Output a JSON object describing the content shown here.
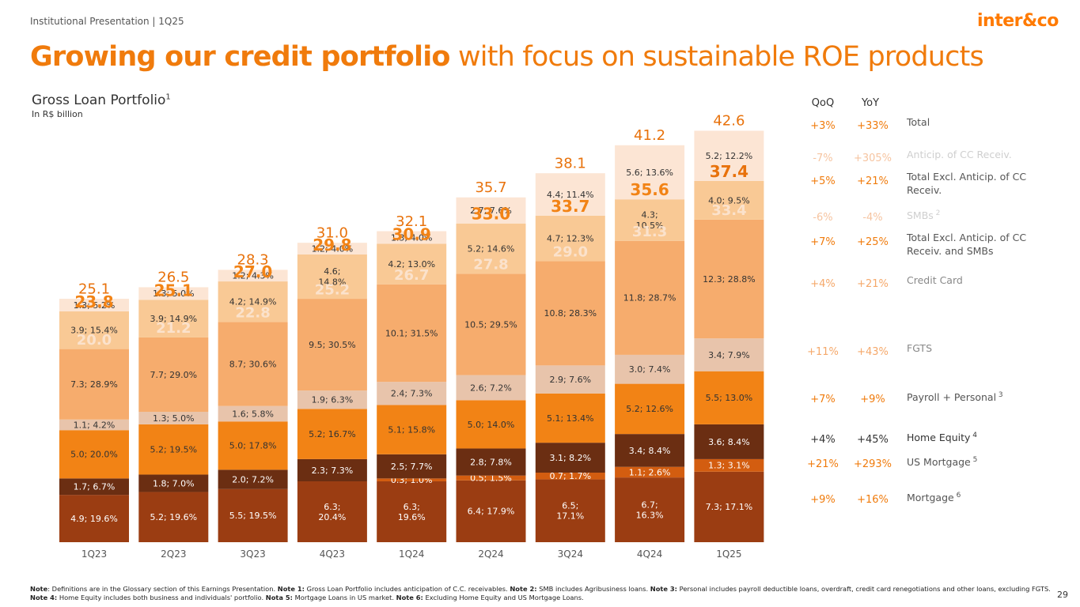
{
  "header": {
    "label": "Institutional Presentation | 1Q25",
    "logo": "inter&co",
    "page": "29"
  },
  "title": {
    "bold": "Growing our credit portfolio",
    "normal": " with focus on sustainable ROE products"
  },
  "chart_data": {
    "type": "bar",
    "stacked": true,
    "title": "Gross Loan Portfolio",
    "title_superscript": "1",
    "unit": "In R$ billion",
    "categories": [
      "1Q23",
      "2Q23",
      "3Q23",
      "4Q23",
      "1Q24",
      "2Q24",
      "3Q24",
      "4Q24",
      "1Q25"
    ],
    "totals": [
      "25.1",
      "26.5",
      "28.3",
      "31.0",
      "32.1",
      "35.7",
      "38.1",
      "41.2",
      "42.6"
    ],
    "series": [
      {
        "name": "Mortgage",
        "color": "#9b3d12",
        "values": [
          4.9,
          5.2,
          5.5,
          6.3,
          6.3,
          6.4,
          6.5,
          6.7,
          7.3
        ],
        "labels": [
          "4.9; 19.6%",
          "5.2; 19.6%",
          "5.5; 19.5%",
          "6.3;\n20.4%",
          "6.3;\n19.6%",
          "6.4; 17.9%",
          "6.5;\n17.1%",
          "6.7;\n16.3%",
          "7.3; 17.1%"
        ]
      },
      {
        "name": "US Mortgage",
        "color": "#d35d10",
        "values": [
          0,
          0,
          0,
          0,
          0.3,
          0.5,
          0.7,
          1.1,
          1.3
        ],
        "labels": [
          "",
          "",
          "",
          "",
          "0.3; 1.0%",
          "0.5; 1.5%",
          "0.7; 1.7%",
          "1.1; 2.6%",
          "1.3; 3.1%"
        ]
      },
      {
        "name": "Home Equity",
        "color": "#6b2e12",
        "values": [
          1.7,
          1.8,
          2.0,
          2.3,
          2.5,
          2.8,
          3.1,
          3.4,
          3.6
        ],
        "labels": [
          "1.7; 6.7%",
          "1.8; 7.0%",
          "2.0; 7.2%",
          "2.3; 7.3%",
          "2.5; 7.7%",
          "2.8; 7.8%",
          "3.1; 8.2%",
          "3.4; 8.4%",
          "3.6; 8.4%"
        ]
      },
      {
        "name": "Payroll + Personal",
        "color": "#f28315",
        "values": [
          5.0,
          5.2,
          5.0,
          5.2,
          5.1,
          5.0,
          5.1,
          5.2,
          5.5
        ],
        "labels": [
          "5.0; 20.0%",
          "5.2; 19.5%",
          "5.0; 17.8%",
          "5.2; 16.7%",
          "5.1; 15.8%",
          "5.0; 14.0%",
          "5.1; 13.4%",
          "5.2; 12.6%",
          "5.5; 13.0%"
        ]
      },
      {
        "name": "FGTS",
        "color": "#e8c4ab",
        "values": [
          1.1,
          1.3,
          1.6,
          1.9,
          2.4,
          2.6,
          2.9,
          3.0,
          3.4
        ],
        "labels": [
          "1.1; 4.2%",
          "1.3; 5.0%",
          "1.6; 5.8%",
          "1.9; 6.3%",
          "2.4; 7.3%",
          "2.6; 7.2%",
          "2.9; 7.6%",
          "3.0; 7.4%",
          "3.4; 7.9%"
        ]
      },
      {
        "name": "Credit Card",
        "color": "#f6ac6d",
        "values": [
          7.3,
          7.7,
          8.7,
          9.5,
          10.1,
          10.5,
          10.8,
          11.8,
          12.3
        ],
        "labels": [
          "7.3; 28.9%",
          "7.7; 29.0%",
          "8.7; 30.6%",
          "9.5; 30.5%",
          "10.1; 31.5%",
          "10.5; 29.5%",
          "10.8; 28.3%",
          "11.8; 28.7%",
          "12.3; 28.8%"
        ]
      },
      {
        "name": "SMBs",
        "color": "#f9c995",
        "values": [
          3.9,
          3.9,
          4.2,
          4.6,
          4.2,
          5.2,
          4.7,
          4.3,
          4.0
        ],
        "labels": [
          "3.9; 15.4%",
          "3.9; 14.9%",
          "4.2; 14.9%",
          "4.6;\n14.8%",
          "4.2; 13.0%",
          "5.2; 14.6%",
          "4.7; 12.3%",
          "4.3;\n10.5%",
          "4.0; 9.5%"
        ]
      },
      {
        "name": "Anticip. of CC Receiv.",
        "color": "#fce5d4",
        "values": [
          1.3,
          1.3,
          1.2,
          1.2,
          1.3,
          2.7,
          4.4,
          5.6,
          5.2
        ],
        "labels": [
          "1.3; 5.2%",
          "1.3; 5.0%",
          "1.2; 4.3%",
          "1.2; 4.0%",
          "1.3; 4.0%",
          "2.7; 7.6%",
          "4.4; 11.4%",
          "5.6; 13.6%",
          "5.2; 12.2%"
        ]
      }
    ],
    "subtotals_excl_smbs": [
      "20.0",
      "21.2",
      "22.8",
      "25.2",
      "26.7",
      "27.8",
      "29.0",
      "31.3",
      "33.4"
    ],
    "subtotals_excl_anticip": [
      "23.8",
      "25.1",
      "27.0",
      "29.8",
      "30.9",
      "33.0",
      "33.7",
      "35.6",
      "37.4"
    ],
    "ylim": [
      0,
      45
    ]
  },
  "growth_table": {
    "headers": {
      "qoq": "QoQ",
      "yoy": "YoY"
    },
    "rows": [
      {
        "qoq": "+3%",
        "yoy": "+33%",
        "label": "Total",
        "sup": ""
      },
      {
        "qoq": "-7%",
        "yoy": "+305%",
        "label": "Anticip. of CC Receiv.",
        "sup": ""
      },
      {
        "qoq": "+5%",
        "yoy": "+21%",
        "label": "Total Excl. Anticip. of CC Receiv.",
        "sup": ""
      },
      {
        "qoq": "-6%",
        "yoy": "-4%",
        "label": "SMBs",
        "sup": "2"
      },
      {
        "qoq": "+7%",
        "yoy": "+25%",
        "label": "Total Excl. Anticip. of CC Receiv. and SMBs",
        "sup": ""
      },
      {
        "qoq": "+4%",
        "yoy": "+21%",
        "label": "Credit Card",
        "sup": ""
      },
      {
        "qoq": "+11%",
        "yoy": "+43%",
        "label": "FGTS",
        "sup": ""
      },
      {
        "qoq": "+7%",
        "yoy": "+9%",
        "label": "Payroll + Personal",
        "sup": "3"
      },
      {
        "qoq": "+4%",
        "yoy": "+45%",
        "label": "Home Equity",
        "sup": "4"
      },
      {
        "qoq": "+21%",
        "yoy": "+293%",
        "label": "US Mortgage",
        "sup": "5"
      },
      {
        "qoq": "+9%",
        "yoy": "+16%",
        "label": "Mortgage",
        "sup": "6"
      }
    ]
  },
  "colors": {
    "accent": "#f07b0c"
  },
  "footnote": {
    "note_label": "Note",
    "note_text": ": Definitions are in the Glossary section of this Earnings Presentation. ",
    "n1_label": "Note 1:",
    "n1": " Gross Loan Portfolio includes anticipation of C.C. receivables. ",
    "n2_label": "Note 2:",
    "n2": " SMB includes Agribusiness loans. ",
    "n3_label": "Note 3:",
    "n3": " Personal includes payroll deductible loans, overdraft, credit card renegotiations and other loans, excluding FGTS. ",
    "n4_label": "Note 4:",
    "n4": " Home Equity includes both business and individuals' portfolio. ",
    "n5_label": "Nota 5:",
    "n5": " Mortgage Loans in US market. ",
    "n6_label": "Note 6:",
    "n6": " Excluding Home Equity and US Mortgage Loans."
  }
}
